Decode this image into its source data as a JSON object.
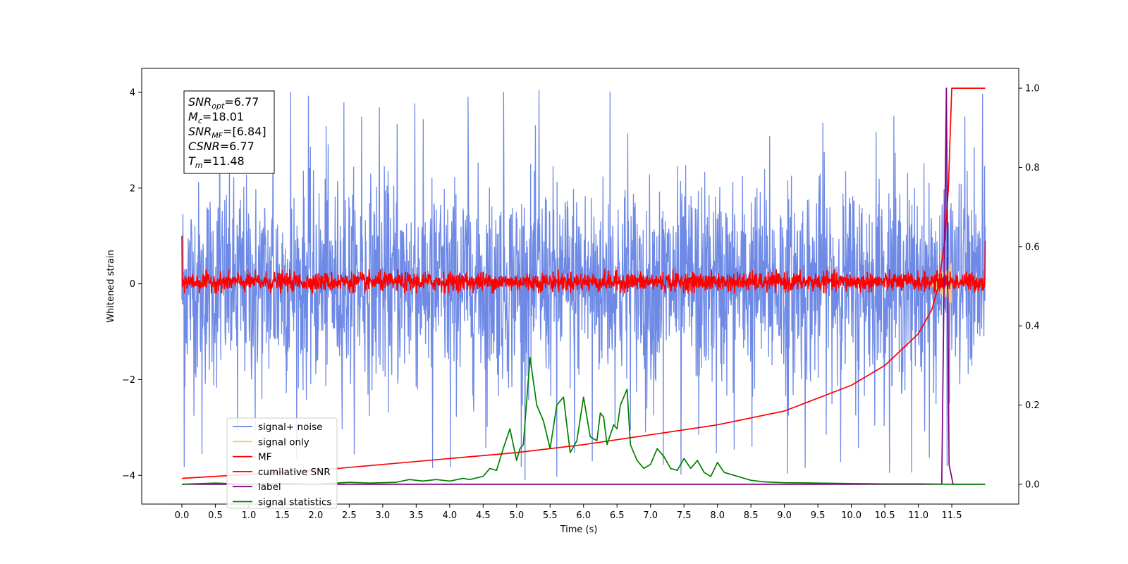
{
  "chart_data": {
    "type": "line",
    "xlabel": "Time (s)",
    "ylabel": "Whitened strain",
    "xlim": [
      -0.6,
      12.5
    ],
    "ylim": [
      -4.6,
      4.5
    ],
    "y2lim": [
      -0.05,
      1.05
    ],
    "xticks": [
      "0.0",
      "0.5",
      "1.0",
      "1.5",
      "2.0",
      "2.5",
      "3.0",
      "3.5",
      "4.0",
      "4.5",
      "5.0",
      "5.5",
      "6.0",
      "6.5",
      "7.0",
      "7.5",
      "8.0",
      "8.5",
      "9.0",
      "9.5",
      "10.0",
      "10.5",
      "11.0",
      "11.5"
    ],
    "yticks": [
      "-4",
      "-2",
      "0",
      "2",
      "4"
    ],
    "y2ticks": [
      "0.0",
      "0.2",
      "0.4",
      "0.6",
      "0.8",
      "1.0"
    ],
    "grid": false,
    "legend_position": "lower-left",
    "stats_box": {
      "lines": [
        {
          "sym": "SNR",
          "sub": "opt",
          "value": "=6.77"
        },
        {
          "sym": "M",
          "sub": "c",
          "value": "=18.01"
        },
        {
          "sym": "SNR",
          "sub": "MF",
          "value": "=[6.84]"
        },
        {
          "sym": "CSNR",
          "sub": "",
          "value": "=6.77"
        },
        {
          "sym": "T",
          "sub": "m",
          "value": "=11.48"
        }
      ]
    },
    "series": [
      {
        "name": "signal+ noise",
        "color": "#6f8ae6",
        "axis": "left",
        "kind": "noise",
        "t_range": [
          0,
          12
        ],
        "envelope": [
          -2.5,
          2.5
        ],
        "peak_max": 4.05,
        "peak_min": -4.1
      },
      {
        "name": "signal only",
        "color": "#f5c77e",
        "axis": "left",
        "kind": "chirp",
        "t_range": [
          11.1,
          11.5
        ],
        "amplitude_max": 0.45
      },
      {
        "name": "MF",
        "color": "#ff0000",
        "axis": "left",
        "kind": "noise",
        "t_range": [
          0,
          12
        ],
        "envelope": [
          -0.2,
          0.3
        ],
        "start_value": 1.0,
        "end_value": 0.9
      },
      {
        "name": "cumilative SNR",
        "color": "#ff0000",
        "axis": "right",
        "x": [
          0,
          1,
          2,
          3,
          4,
          5,
          6,
          7,
          8,
          9,
          10,
          10.5,
          11,
          11.2,
          11.3,
          11.4,
          11.45,
          11.48,
          11.5,
          12
        ],
        "y": [
          0.015,
          0.025,
          0.035,
          0.05,
          0.065,
          0.08,
          0.1,
          0.125,
          0.15,
          0.185,
          0.25,
          0.3,
          0.38,
          0.44,
          0.5,
          0.62,
          0.75,
          0.9,
          1.0,
          1.0
        ]
      },
      {
        "name": "label",
        "color": "#800080",
        "axis": "right",
        "x": [
          0,
          11.35,
          11.42,
          11.46,
          11.52,
          11.55,
          12
        ],
        "y": [
          0,
          0,
          1.0,
          0.05,
          0,
          0,
          0
        ]
      },
      {
        "name": "signal statistics",
        "color": "#008000",
        "axis": "right",
        "x": [
          0,
          0.5,
          1,
          1.5,
          2,
          2.5,
          2.8,
          3.2,
          3.4,
          3.6,
          3.8,
          4.0,
          4.2,
          4.3,
          4.5,
          4.6,
          4.7,
          4.8,
          4.9,
          5.0,
          5.05,
          5.1,
          5.2,
          5.3,
          5.4,
          5.5,
          5.6,
          5.7,
          5.75,
          5.8,
          5.9,
          6.0,
          6.1,
          6.2,
          6.25,
          6.3,
          6.35,
          6.45,
          6.5,
          6.55,
          6.65,
          6.7,
          6.8,
          6.9,
          7.0,
          7.1,
          7.2,
          7.3,
          7.4,
          7.5,
          7.6,
          7.7,
          7.8,
          7.9,
          8.0,
          8.1,
          8.3,
          8.5,
          8.7,
          9.0,
          9.5,
          10.0,
          10.5,
          11.0,
          11.5,
          12.0
        ],
        "y": [
          0.0,
          0.003,
          0.0,
          0.002,
          0.0,
          0.005,
          0.003,
          0.005,
          0.012,
          0.008,
          0.012,
          0.008,
          0.015,
          0.012,
          0.02,
          0.04,
          0.035,
          0.09,
          0.14,
          0.06,
          0.09,
          0.1,
          0.32,
          0.2,
          0.16,
          0.09,
          0.2,
          0.22,
          0.15,
          0.08,
          0.11,
          0.22,
          0.12,
          0.11,
          0.18,
          0.17,
          0.1,
          0.15,
          0.14,
          0.2,
          0.24,
          0.1,
          0.06,
          0.04,
          0.05,
          0.09,
          0.07,
          0.04,
          0.035,
          0.065,
          0.04,
          0.06,
          0.03,
          0.02,
          0.055,
          0.03,
          0.02,
          0.01,
          0.006,
          0.004,
          0.003,
          0.002,
          0.001,
          0.001,
          0.0,
          0.0
        ]
      }
    ]
  }
}
